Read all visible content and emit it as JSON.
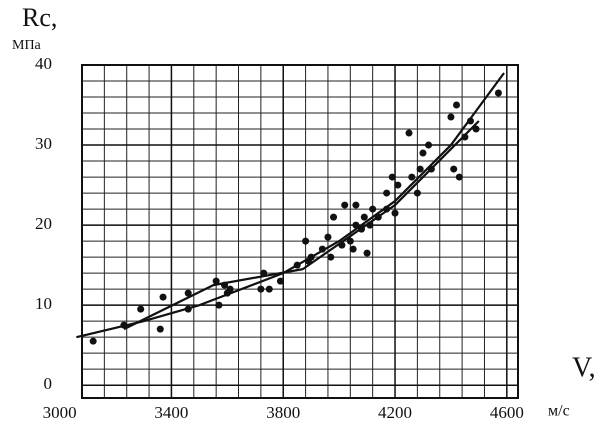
{
  "chart_data": {
    "type": "scatter",
    "y_label": "Rc,",
    "y_unit": "МПа",
    "x_label": "V,",
    "x_unit": "м/с",
    "xlim": [
      3080,
      4640
    ],
    "xticks": [
      3000,
      3400,
      3800,
      4200,
      4600
    ],
    "ylim": [
      -1.6,
      40
    ],
    "yticks": [
      0,
      10,
      20,
      30,
      40
    ],
    "grid": true,
    "series": [
      {
        "type": "scatter",
        "color": "#111111",
        "x": [
          3120,
          3230,
          3290,
          3360,
          3370,
          3460,
          3460,
          3560,
          3570,
          3590,
          3610,
          3600,
          3720,
          3730,
          3750,
          3790,
          3850,
          3880,
          3890,
          3900,
          3940,
          3960,
          3970,
          3980,
          4010,
          4020,
          4040,
          4050,
          4060,
          4060,
          4080,
          4090,
          4100,
          4110,
          4120,
          4140,
          4170,
          4170,
          4190,
          4200,
          4210,
          4250,
          4260,
          4280,
          4290,
          4300,
          4320,
          4330,
          4400,
          4410,
          4420,
          4430,
          4450,
          4470,
          4490,
          4570
        ],
        "values": [
          5.5,
          7.5,
          9.5,
          7,
          11,
          9.5,
          11.5,
          13,
          10,
          12.5,
          12,
          11.5,
          12,
          14,
          12,
          13,
          15,
          18,
          15.5,
          16,
          17,
          18.5,
          16,
          21,
          17.5,
          22.5,
          18,
          17,
          22.5,
          20,
          19.5,
          21,
          16.5,
          20,
          22,
          21,
          22,
          24,
          26,
          21.5,
          25,
          31.5,
          26,
          24,
          27,
          29,
          30,
          27,
          33.5,
          27,
          35,
          26,
          31,
          33,
          32,
          36.5
        ]
      },
      {
        "type": "line",
        "color": "#111111",
        "x": [
          3060,
          3300,
          3500,
          3800,
          4000,
          4200,
          4400,
          4590
        ],
        "values": [
          6,
          8,
          10,
          14,
          18,
          23,
          30,
          39
        ]
      },
      {
        "type": "line",
        "color": "#111111",
        "x": [
          3230,
          3550,
          3870,
          4200,
          4500
        ],
        "values": [
          7,
          12.5,
          14.5,
          22.5,
          33
        ]
      }
    ]
  }
}
